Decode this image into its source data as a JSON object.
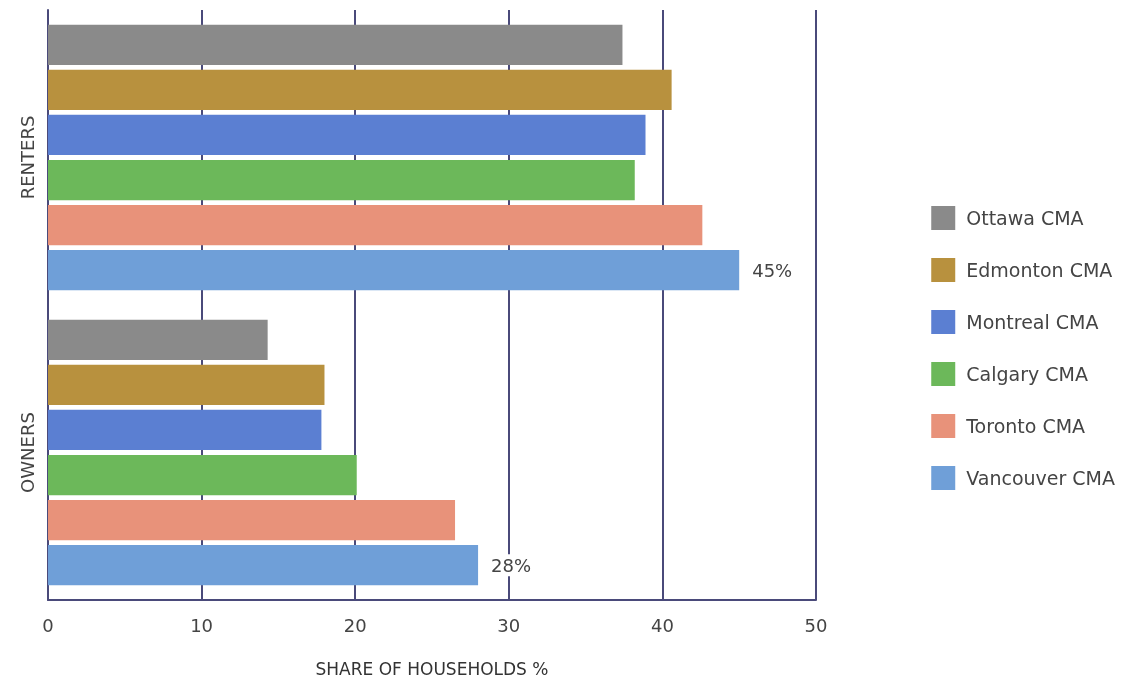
{
  "chart_data": {
    "type": "bar",
    "orientation": "horizontal",
    "xlabel": "SHARE OF HOUSEHOLDS %",
    "categories": [
      "RENTERS",
      "OWNERS"
    ],
    "series": [
      {
        "name": "Ottawa CMA",
        "color": "#8a8a8a",
        "values": [
          37.4,
          14.3
        ]
      },
      {
        "name": "Edmonton CMA",
        "color": "#b8913e",
        "values": [
          40.6,
          18.0
        ]
      },
      {
        "name": "Montreal CMA",
        "color": "#5b7fd2",
        "values": [
          38.9,
          17.8
        ]
      },
      {
        "name": "Calgary CMA",
        "color": "#6cb85a",
        "values": [
          38.2,
          20.1
        ]
      },
      {
        "name": "Toronto CMA",
        "color": "#e8927a",
        "values": [
          42.6,
          26.5
        ]
      },
      {
        "name": "Vancouver CMA",
        "color": "#6f9fd8",
        "values": [
          45,
          28
        ],
        "value_labels": [
          "45%",
          "28%"
        ]
      }
    ],
    "xlim": [
      0,
      50
    ],
    "xticks": [
      0,
      10,
      20,
      30,
      40,
      50
    ],
    "grid": "x",
    "legend": "right"
  }
}
